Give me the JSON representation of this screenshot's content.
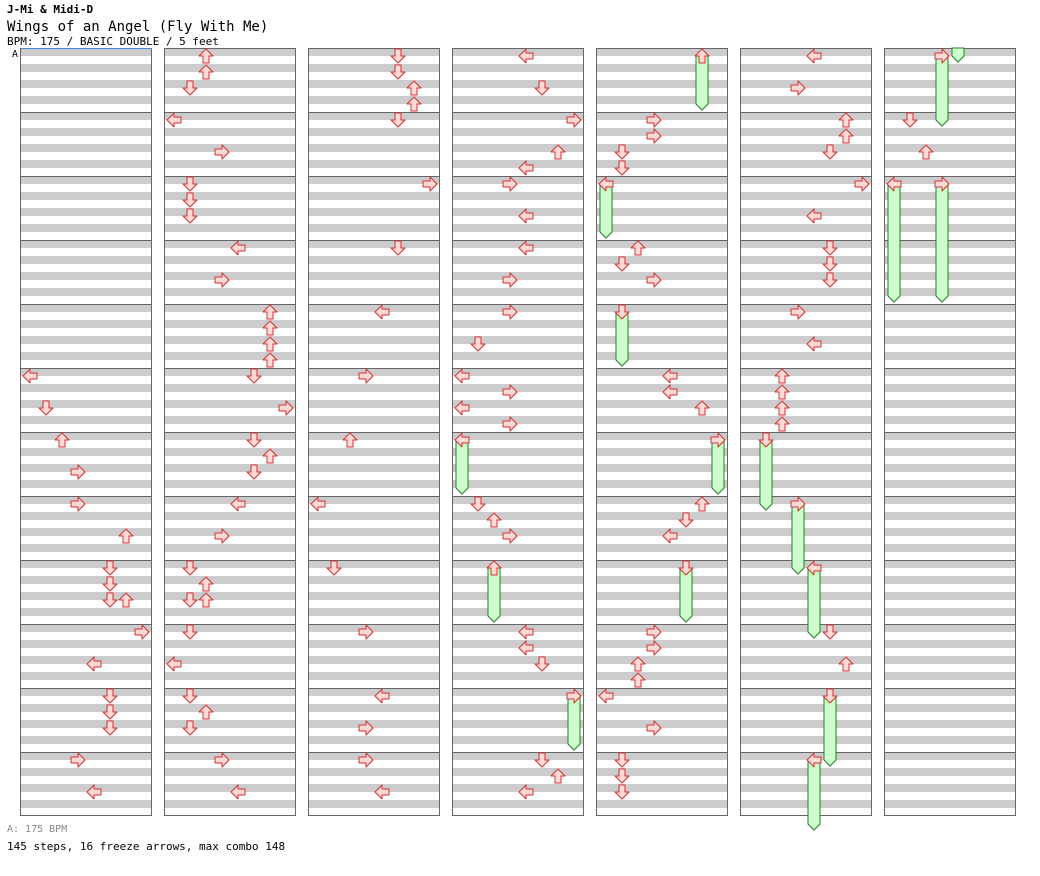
{
  "header": {
    "artist": "J-Mi & Midi-D",
    "title": "Wings of an Angel (Fly With Me)",
    "subhead": "BPM: 175 / BASIC DOUBLE / 5 feet"
  },
  "bpm_marker": "A",
  "footer": {
    "bpm_note": "A: 175 BPM",
    "summary": "145 steps, 16 freeze arrows, max combo 148"
  },
  "colors": {
    "stripe": "#cccccc",
    "arrow_fill": "#ffd8d8",
    "arrow_stroke": "#d03030",
    "freeze_fill": "#ccffcc",
    "freeze_stroke": "#208020",
    "marker_line": "#4488dd"
  },
  "chart_data": {
    "type": "table",
    "mode": "BASIC DOUBLE",
    "bpm": 175,
    "lanes": [
      "L1",
      "D1",
      "U1",
      "R1",
      "L2",
      "D2",
      "U2",
      "R2"
    ],
    "columns": 7,
    "measures_per_column": 12,
    "sixteenths_per_measure": 16,
    "notes": [
      {
        "c": 0,
        "y": 376,
        "l": 0
      },
      {
        "c": 0,
        "y": 408,
        "l": 1
      },
      {
        "c": 0,
        "y": 440,
        "l": 2
      },
      {
        "c": 0,
        "y": 472,
        "l": 3
      },
      {
        "c": 0,
        "y": 504,
        "l": 3
      },
      {
        "c": 0,
        "y": 536,
        "l": 6
      },
      {
        "c": 0,
        "y": 568,
        "l": 5
      },
      {
        "c": 0,
        "y": 584,
        "l": 5
      },
      {
        "c": 0,
        "y": 600,
        "l": 5
      },
      {
        "c": 0,
        "y": 600,
        "l": 6
      },
      {
        "c": 0,
        "y": 632,
        "l": 7
      },
      {
        "c": 0,
        "y": 664,
        "l": 4
      },
      {
        "c": 0,
        "y": 696,
        "l": 5
      },
      {
        "c": 0,
        "y": 712,
        "l": 5
      },
      {
        "c": 0,
        "y": 728,
        "l": 5
      },
      {
        "c": 0,
        "y": 760,
        "l": 3
      },
      {
        "c": 0,
        "y": 792,
        "l": 4
      },
      {
        "c": 1,
        "y": 56,
        "l": 2
      },
      {
        "c": 1,
        "y": 72,
        "l": 2
      },
      {
        "c": 1,
        "y": 88,
        "l": 1
      },
      {
        "c": 1,
        "y": 120,
        "l": 0
      },
      {
        "c": 1,
        "y": 152,
        "l": 3
      },
      {
        "c": 1,
        "y": 184,
        "l": 1
      },
      {
        "c": 1,
        "y": 200,
        "l": 1
      },
      {
        "c": 1,
        "y": 216,
        "l": 1
      },
      {
        "c": 1,
        "y": 248,
        "l": 4
      },
      {
        "c": 1,
        "y": 280,
        "l": 3
      },
      {
        "c": 1,
        "y": 312,
        "l": 6
      },
      {
        "c": 1,
        "y": 328,
        "l": 6
      },
      {
        "c": 1,
        "y": 344,
        "l": 6
      },
      {
        "c": 1,
        "y": 360,
        "l": 6
      },
      {
        "c": 1,
        "y": 376,
        "l": 5
      },
      {
        "c": 1,
        "y": 408,
        "l": 7
      },
      {
        "c": 1,
        "y": 440,
        "l": 5
      },
      {
        "c": 1,
        "y": 456,
        "l": 6
      },
      {
        "c": 1,
        "y": 472,
        "l": 5
      },
      {
        "c": 1,
        "y": 504,
        "l": 4
      },
      {
        "c": 1,
        "y": 536,
        "l": 3
      },
      {
        "c": 1,
        "y": 568,
        "l": 1
      },
      {
        "c": 1,
        "y": 584,
        "l": 2
      },
      {
        "c": 1,
        "y": 600,
        "l": 1
      },
      {
        "c": 1,
        "y": 600,
        "l": 2
      },
      {
        "c": 1,
        "y": 632,
        "l": 1
      },
      {
        "c": 1,
        "y": 664,
        "l": 0
      },
      {
        "c": 1,
        "y": 696,
        "l": 1
      },
      {
        "c": 1,
        "y": 712,
        "l": 2
      },
      {
        "c": 1,
        "y": 728,
        "l": 1
      },
      {
        "c": 1,
        "y": 760,
        "l": 3
      },
      {
        "c": 1,
        "y": 792,
        "l": 4
      },
      {
        "c": 2,
        "y": 56,
        "l": 5
      },
      {
        "c": 2,
        "y": 72,
        "l": 5
      },
      {
        "c": 2,
        "y": 88,
        "l": 6
      },
      {
        "c": 2,
        "y": 104,
        "l": 6
      },
      {
        "c": 2,
        "y": 120,
        "l": 5
      },
      {
        "c": 2,
        "y": 184,
        "l": 7
      },
      {
        "c": 2,
        "y": 248,
        "l": 5
      },
      {
        "c": 2,
        "y": 312,
        "l": 4
      },
      {
        "c": 2,
        "y": 376,
        "l": 3
      },
      {
        "c": 2,
        "y": 440,
        "l": 2
      },
      {
        "c": 2,
        "y": 504,
        "l": 0
      },
      {
        "c": 2,
        "y": 568,
        "l": 1
      },
      {
        "c": 2,
        "y": 632,
        "l": 3
      },
      {
        "c": 2,
        "y": 696,
        "l": 4
      },
      {
        "c": 2,
        "y": 728,
        "l": 3
      },
      {
        "c": 2,
        "y": 760,
        "l": 3
      },
      {
        "c": 2,
        "y": 792,
        "l": 4
      },
      {
        "c": 3,
        "y": 56,
        "l": 4
      },
      {
        "c": 3,
        "y": 88,
        "l": 5
      },
      {
        "c": 3,
        "y": 120,
        "l": 7
      },
      {
        "c": 3,
        "y": 152,
        "l": 6
      },
      {
        "c": 3,
        "y": 168,
        "l": 4
      },
      {
        "c": 3,
        "y": 184,
        "l": 3
      },
      {
        "c": 3,
        "y": 216,
        "l": 4
      },
      {
        "c": 3,
        "y": 248,
        "l": 4
      },
      {
        "c": 3,
        "y": 280,
        "l": 3
      },
      {
        "c": 3,
        "y": 312,
        "l": 3
      },
      {
        "c": 3,
        "y": 344,
        "l": 1
      },
      {
        "c": 3,
        "y": 376,
        "l": 0
      },
      {
        "c": 3,
        "y": 392,
        "l": 3
      },
      {
        "c": 3,
        "y": 408,
        "l": 0
      },
      {
        "c": 3,
        "y": 424,
        "l": 3
      },
      {
        "c": 3,
        "y": 504,
        "l": 1
      },
      {
        "c": 3,
        "y": 520,
        "l": 2
      },
      {
        "c": 3,
        "y": 536,
        "l": 3
      },
      {
        "c": 3,
        "y": 632,
        "l": 4
      },
      {
        "c": 3,
        "y": 648,
        "l": 4
      },
      {
        "c": 3,
        "y": 664,
        "l": 5
      },
      {
        "c": 3,
        "y": 760,
        "l": 5
      },
      {
        "c": 3,
        "y": 776,
        "l": 6
      },
      {
        "c": 3,
        "y": 792,
        "l": 4
      },
      {
        "c": 4,
        "y": 120,
        "l": 3
      },
      {
        "c": 4,
        "y": 136,
        "l": 3
      },
      {
        "c": 4,
        "y": 152,
        "l": 1
      },
      {
        "c": 4,
        "y": 168,
        "l": 1
      },
      {
        "c": 4,
        "y": 248,
        "l": 2
      },
      {
        "c": 4,
        "y": 264,
        "l": 1
      },
      {
        "c": 4,
        "y": 280,
        "l": 3
      },
      {
        "c": 4,
        "y": 376,
        "l": 4
      },
      {
        "c": 4,
        "y": 392,
        "l": 4
      },
      {
        "c": 4,
        "y": 408,
        "l": 6
      },
      {
        "c": 4,
        "y": 504,
        "l": 6
      },
      {
        "c": 4,
        "y": 520,
        "l": 5
      },
      {
        "c": 4,
        "y": 536,
        "l": 4
      },
      {
        "c": 4,
        "y": 632,
        "l": 3
      },
      {
        "c": 4,
        "y": 648,
        "l": 3
      },
      {
        "c": 4,
        "y": 664,
        "l": 2
      },
      {
        "c": 4,
        "y": 680,
        "l": 2
      },
      {
        "c": 4,
        "y": 696,
        "l": 0
      },
      {
        "c": 4,
        "y": 728,
        "l": 3
      },
      {
        "c": 4,
        "y": 760,
        "l": 1
      },
      {
        "c": 4,
        "y": 776,
        "l": 1
      },
      {
        "c": 4,
        "y": 792,
        "l": 1
      },
      {
        "c": 5,
        "y": 56,
        "l": 4
      },
      {
        "c": 5,
        "y": 88,
        "l": 3
      },
      {
        "c": 5,
        "y": 120,
        "l": 6
      },
      {
        "c": 5,
        "y": 136,
        "l": 6
      },
      {
        "c": 5,
        "y": 152,
        "l": 5
      },
      {
        "c": 5,
        "y": 184,
        "l": 7
      },
      {
        "c": 5,
        "y": 216,
        "l": 4
      },
      {
        "c": 5,
        "y": 248,
        "l": 5
      },
      {
        "c": 5,
        "y": 264,
        "l": 5
      },
      {
        "c": 5,
        "y": 280,
        "l": 5
      },
      {
        "c": 5,
        "y": 312,
        "l": 3
      },
      {
        "c": 5,
        "y": 344,
        "l": 4
      },
      {
        "c": 5,
        "y": 376,
        "l": 2
      },
      {
        "c": 5,
        "y": 392,
        "l": 2
      },
      {
        "c": 5,
        "y": 408,
        "l": 2
      },
      {
        "c": 5,
        "y": 424,
        "l": 2
      },
      {
        "c": 5,
        "y": 632,
        "l": 5
      },
      {
        "c": 5,
        "y": 664,
        "l": 6
      },
      {
        "c": 6,
        "y": 120,
        "l": 1
      },
      {
        "c": 6,
        "y": 152,
        "l": 2
      }
    ],
    "freezes": [
      {
        "c": 4,
        "l": 6,
        "y1": 56,
        "y2": 104
      },
      {
        "c": 6,
        "l": 3,
        "y1": 56,
        "y2": 120
      },
      {
        "c": 6,
        "l": 4,
        "y1": 48,
        "y2": 56
      },
      {
        "c": 4,
        "l": 0,
        "y1": 184,
        "y2": 232
      },
      {
        "c": 6,
        "l": 0,
        "y1": 184,
        "y2": 296
      },
      {
        "c": 6,
        "l": 3,
        "y1": 184,
        "y2": 296
      },
      {
        "c": 4,
        "l": 1,
        "y1": 312,
        "y2": 360
      },
      {
        "c": 3,
        "l": 0,
        "y1": 440,
        "y2": 488
      },
      {
        "c": 4,
        "l": 7,
        "y1": 440,
        "y2": 488
      },
      {
        "c": 5,
        "l": 1,
        "y1": 440,
        "y2": 504
      },
      {
        "c": 5,
        "l": 3,
        "y1": 504,
        "y2": 568
      },
      {
        "c": 3,
        "l": 2,
        "y1": 568,
        "y2": 616
      },
      {
        "c": 4,
        "l": 5,
        "y1": 568,
        "y2": 616
      },
      {
        "c": 5,
        "l": 4,
        "y1": 568,
        "y2": 632
      },
      {
        "c": 3,
        "l": 7,
        "y1": 696,
        "y2": 744
      },
      {
        "c": 5,
        "l": 5,
        "y1": 696,
        "y2": 760
      },
      {
        "c": 5,
        "l": 4,
        "y1": 760,
        "y2": 824
      }
    ]
  }
}
